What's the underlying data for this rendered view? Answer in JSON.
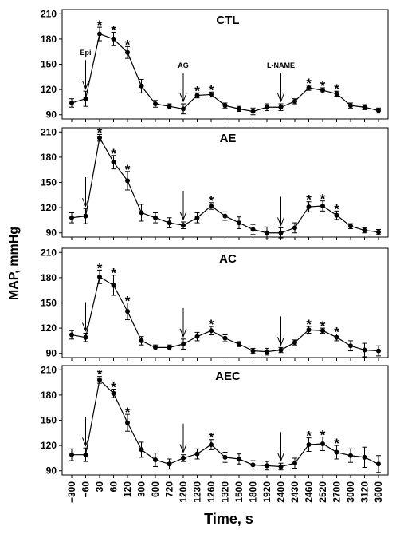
{
  "figure": {
    "ylabel": "MAP, mmHg",
    "xlabel": "Time, s",
    "x_tick_labels": [
      "−300",
      "−60",
      "30",
      "60",
      "120",
      "300",
      "600",
      "720",
      "1200",
      "1230",
      "1260",
      "1320",
      "1500",
      "1800",
      "1920",
      "2400",
      "2430",
      "2460",
      "2520",
      "2700",
      "3000",
      "3120",
      "3600"
    ],
    "y_ticks": [
      90,
      120,
      150,
      180,
      210
    ]
  },
  "annotations": {
    "epi": "Epi",
    "ag": "AG",
    "lname": "L-NAME"
  },
  "chart_data": [
    {
      "type": "line",
      "title": "CTL",
      "ylim": [
        85,
        215
      ],
      "values": [
        104,
        109,
        186,
        180,
        164,
        124,
        103,
        100,
        97,
        113,
        114,
        101,
        97,
        94,
        99,
        99,
        106,
        122,
        119,
        115,
        101,
        99,
        95
      ],
      "errors": [
        5,
        9,
        8,
        8,
        7,
        8,
        4,
        3,
        6,
        3,
        3,
        3,
        3,
        4,
        4,
        4,
        3,
        3,
        3,
        3,
        3,
        3,
        3
      ],
      "significant_indices": [
        2,
        3,
        4,
        9,
        10,
        17,
        18,
        19
      ],
      "arrows": [
        {
          "index": 1,
          "label": "epi"
        },
        {
          "index": 8,
          "label": "ag"
        },
        {
          "index": 15,
          "label": "lname"
        }
      ]
    },
    {
      "type": "line",
      "title": "AE",
      "ylim": [
        85,
        215
      ],
      "values": [
        108,
        110,
        203,
        174,
        152,
        114,
        108,
        102,
        99,
        108,
        122,
        110,
        102,
        94,
        90,
        90,
        96,
        121,
        122,
        111,
        98,
        93,
        91
      ],
      "errors": [
        6,
        9,
        4,
        8,
        11,
        10,
        6,
        6,
        4,
        6,
        4,
        5,
        7,
        6,
        7,
        6,
        6,
        6,
        6,
        5,
        3,
        3,
        3
      ],
      "significant_indices": [
        2,
        3,
        4,
        10,
        17,
        18,
        19
      ],
      "arrows": [
        {
          "index": 1
        },
        {
          "index": 8
        },
        {
          "index": 15
        }
      ]
    },
    {
      "type": "line",
      "title": "AC",
      "ylim": [
        85,
        215
      ],
      "values": [
        112,
        109,
        181,
        171,
        140,
        105,
        97,
        97,
        101,
        110,
        117,
        108,
        101,
        93,
        92,
        94,
        103,
        118,
        117,
        109,
        99,
        94,
        93
      ],
      "errors": [
        5,
        5,
        8,
        12,
        10,
        5,
        3,
        3,
        6,
        5,
        5,
        4,
        3,
        3,
        4,
        3,
        3,
        4,
        3,
        4,
        6,
        8,
        6
      ],
      "significant_indices": [
        2,
        3,
        4,
        10,
        17,
        18,
        19
      ],
      "arrows": [
        {
          "index": 1
        },
        {
          "index": 8
        },
        {
          "index": 15
        }
      ]
    },
    {
      "type": "line",
      "title": "AEC",
      "ylim": [
        85,
        215
      ],
      "values": [
        109,
        109,
        198,
        182,
        147,
        115,
        103,
        98,
        105,
        110,
        121,
        106,
        104,
        97,
        96,
        95,
        99,
        121,
        122,
        112,
        108,
        106,
        98
      ],
      "errors": [
        7,
        8,
        4,
        5,
        10,
        9,
        8,
        6,
        4,
        6,
        6,
        6,
        6,
        5,
        5,
        4,
        6,
        8,
        8,
        8,
        8,
        12,
        10
      ],
      "significant_indices": [
        2,
        3,
        4,
        10,
        17,
        18,
        19
      ],
      "arrows": [
        {
          "index": 1
        },
        {
          "index": 8
        },
        {
          "index": 15
        }
      ]
    }
  ]
}
